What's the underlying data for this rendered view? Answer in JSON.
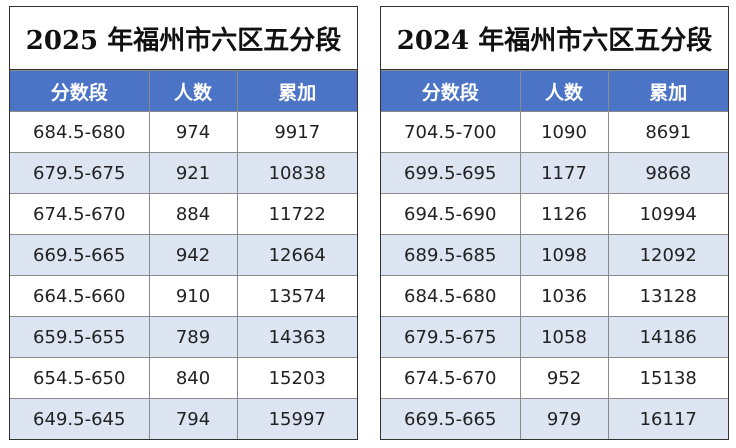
{
  "tables": [
    {
      "title": "2025 年福州市六区五分段",
      "headers": [
        "分数段",
        "人数",
        "累加"
      ],
      "rows": [
        [
          "684.5-680",
          "974",
          "9917"
        ],
        [
          "679.5-675",
          "921",
          "10838"
        ],
        [
          "674.5-670",
          "884",
          "11722"
        ],
        [
          "669.5-665",
          "942",
          "12664"
        ],
        [
          "664.5-660",
          "910",
          "13574"
        ],
        [
          "659.5-655",
          "789",
          "14363"
        ],
        [
          "654.5-650",
          "840",
          "15203"
        ],
        [
          "649.5-645",
          "794",
          "15997"
        ]
      ]
    },
    {
      "title": "2024 年福州市六区五分段",
      "headers": [
        "分数段",
        "人数",
        "累加"
      ],
      "rows": [
        [
          "704.5-700",
          "1090",
          "8691"
        ],
        [
          "699.5-695",
          "1177",
          "9868"
        ],
        [
          "694.5-690",
          "1126",
          "10994"
        ],
        [
          "689.5-685",
          "1098",
          "12092"
        ],
        [
          "684.5-680",
          "1036",
          "13128"
        ],
        [
          "679.5-675",
          "1058",
          "14186"
        ],
        [
          "674.5-670",
          "952",
          "15138"
        ],
        [
          "669.5-665",
          "979",
          "16117"
        ]
      ]
    }
  ],
  "colors": {
    "header_bg": "#4b73c6",
    "alt_row_bg": "#dde4f2"
  }
}
